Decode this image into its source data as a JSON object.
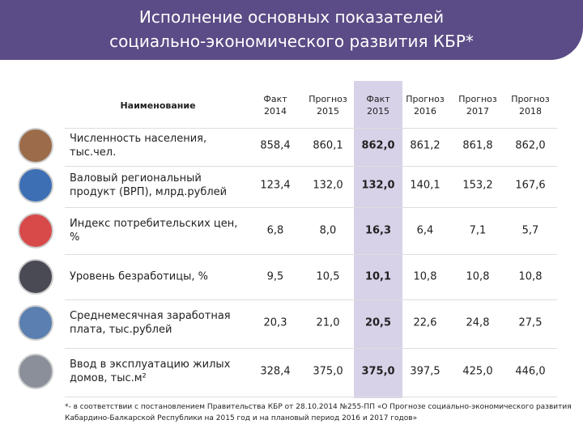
{
  "header": {
    "title_line1": "Исполнение основных показателей",
    "title_line2": "социально-экономического развития КБР*"
  },
  "table": {
    "name_header": "Наименование",
    "columns": [
      {
        "kind": "Факт",
        "year": "2014"
      },
      {
        "kind": "Прогноз",
        "year": "2015"
      },
      {
        "kind": "Факт",
        "year": "2015"
      },
      {
        "kind": "Прогноз",
        "year": "2016"
      },
      {
        "kind": "Прогноз",
        "year": "2017"
      },
      {
        "kind": "Прогноз",
        "year": "2018"
      }
    ],
    "highlight_column": 2,
    "rows": [
      {
        "name": "Численность населения, тыс.чел.",
        "values": [
          "858,4",
          "860,1",
          "862,0",
          "861,2",
          "861,8",
          "862,0"
        ]
      },
      {
        "name": "Валовый региональный продукт (ВРП), млрд.рублей",
        "values": [
          "123,4",
          "132,0",
          "132,0",
          "140,1",
          "153,2",
          "167,6"
        ]
      },
      {
        "name": "Индекс потребительских цен, %",
        "values": [
          "6,8",
          "8,0",
          "16,3",
          "6,4",
          "7,1",
          "5,7"
        ]
      },
      {
        "name": "Уровень безработицы, %",
        "values": [
          "9,5",
          "10,5",
          "10,1",
          "10,8",
          "10,8",
          "10,8"
        ]
      },
      {
        "name": "Среднемесячная заработная плата, тыс.рублей",
        "values": [
          "20,3",
          "21,0",
          "20,5",
          "22,6",
          "24,8",
          "27,5"
        ]
      },
      {
        "name": "Ввод в эксплуатацию жилых домов, тыс.м²",
        "values": [
          "328,4",
          "375,0",
          "375,0",
          "397,5",
          "425,0",
          "446,0"
        ]
      }
    ]
  },
  "footnote": "*- в соответствии с постановлением Правительства КБР от 28.10.2014 №255-ПП «О Прогнозе социально-экономического развития Кабардино-Балкарской Республики на 2015 год и на плановый период 2016 и 2017 годов»"
}
